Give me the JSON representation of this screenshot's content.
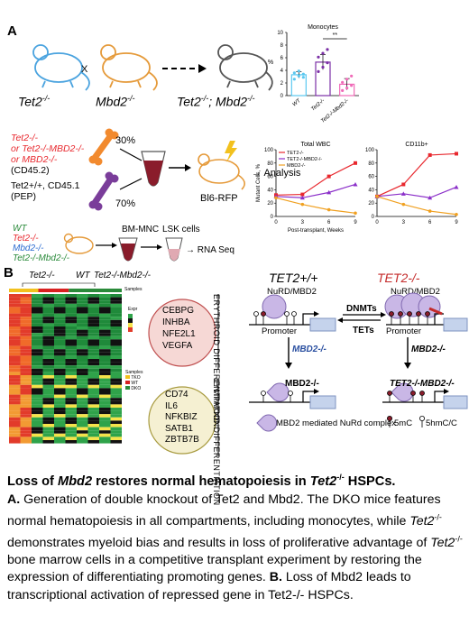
{
  "panel_a_label": "A",
  "panel_b_label": "B",
  "mice": {
    "tet2": "Tet2",
    "tet2_sup": "-/-",
    "cross": "X",
    "mbd2": "Mbd2",
    "mbd2_sup": "-/-",
    "dko_a": "Tet2",
    "dko_sup1": "-/-",
    "dko_b": "; Mbd2",
    "dko_sup2": "-/-"
  },
  "transplant": {
    "donor_lines": [
      "Tet2-/-",
      "or Tet2-/-MBD2-/-",
      "or MBD2-/-",
      "(CD45.2)"
    ],
    "competitor_lines": [
      "Tet2+/+, CD45.1",
      "(PEP)"
    ],
    "pct_top": "30%",
    "pct_bottom": "70%",
    "recipient": "Bl6-RFP",
    "analysis": "Analysis"
  },
  "rnaseq": {
    "genotypes": [
      "WT",
      "Tet2-/-",
      "Mbd2-/-",
      "Tet2-/-Mbd2-/-"
    ],
    "bm_mnc": "BM-MNC",
    "lsk": "LSK cells",
    "rna": "RNA Seq"
  },
  "chart_data": [
    {
      "type": "bar",
      "title": "Monocytes",
      "ylabel": "%",
      "categories": [
        "WT",
        "Tet2-/-",
        "Tet2-/-Mbd2-/-"
      ],
      "values": [
        3.3,
        5.3,
        1.8
      ],
      "errors": [
        0.5,
        1.2,
        0.9
      ],
      "points": [
        [
          2.6,
          3.1,
          3.4,
          3.6,
          3.9,
          2.9
        ],
        [
          3.8,
          4.5,
          5.2,
          6.1,
          6.7,
          7.3
        ],
        [
          0.8,
          1.2,
          1.6,
          2.1,
          2.6,
          3.1
        ]
      ],
      "ylim": [
        0,
        10
      ],
      "yticks": [
        "0",
        "2",
        "4",
        "6",
        "8",
        "10"
      ],
      "colors": [
        "#5bc8f0",
        "#7b2fa6",
        "#f06bb8"
      ],
      "significance": "**"
    },
    {
      "type": "line",
      "title": "Total WBC",
      "ylabel": "Mutant Cells, %",
      "xlabel": "Post-transplant, Weeks",
      "x": [
        0,
        3,
        6,
        9
      ],
      "xticks": [
        "0",
        "3",
        "6",
        "9"
      ],
      "ylim": [
        0,
        100
      ],
      "yticks": [
        "0",
        "20",
        "40",
        "60",
        "80",
        "100"
      ],
      "series": [
        {
          "name": "TET2-/-",
          "color": "#e8282e",
          "values": [
            32,
            33,
            60,
            80
          ]
        },
        {
          "name": "TET2-/-MBD2-/-",
          "color": "#8b2fc9",
          "values": [
            30,
            28,
            36,
            48
          ]
        },
        {
          "name": "MBD2-/-",
          "color": "#f0a020",
          "values": [
            28,
            18,
            10,
            5
          ]
        }
      ]
    },
    {
      "type": "line",
      "title": "CD11b+",
      "x": [
        0,
        3,
        6,
        9
      ],
      "xticks": [
        "0",
        "3",
        "6",
        "9"
      ],
      "ylim": [
        0,
        100
      ],
      "yticks": [
        "0",
        "20",
        "40",
        "60",
        "80",
        "100"
      ],
      "series": [
        {
          "name": "TET2-/-",
          "color": "#e8282e",
          "values": [
            30,
            48,
            92,
            94
          ]
        },
        {
          "name": "TET2-/-MBD2-/-",
          "color": "#8b2fc9",
          "values": [
            30,
            34,
            28,
            44
          ]
        },
        {
          "name": "MBD2-/-",
          "color": "#f0a020",
          "values": [
            30,
            18,
            8,
            3
          ]
        }
      ]
    }
  ],
  "heatmap": {
    "col_labels": [
      "Tet2-/-",
      "WT",
      "Tet2-/-Mbd2-/-"
    ],
    "samples": "Samples",
    "legend_expr": "Expr",
    "sample_key": [
      "TKO",
      "WT",
      "DKO"
    ],
    "genes_top": [
      "CEBPG",
      "INHBA",
      "NFE2L1",
      "VEGFA"
    ],
    "genes_bottom": [
      "CD74",
      "IL6",
      "NFKBIZ",
      "SATB1",
      "ZBTB7B"
    ],
    "erythroid": "ERYTHROID DIFFERENTIATION",
    "lymphoid": "LYMPHOID DIFFERENTIATION"
  },
  "mechanism": {
    "tet2_wt": "TET2+/+",
    "tet2_ko": "TET2-/-",
    "nurd_left": "NuRD/MBD2",
    "nurd_right": "NuRD/MBD2",
    "dnmts": "DNMTs",
    "tets": "TETs",
    "promoter_left": "Promoter",
    "promoter_right": "Promoter",
    "mbd2_arrow_left": "MBD2-/-",
    "mbd2_arrow_right": "MBD2-/-",
    "mbd2_result": "MBD2-/-",
    "dko_result": "TET2-/-MBD2-/-",
    "legend_complex": "MBD2 mediated NuRd complex",
    "legend_5mc": "5mC",
    "legend_5hmc": "5hmC/C"
  },
  "caption": {
    "title_pre": "Loss of ",
    "title_gene": "Mbd2",
    "title_post": " restores normal hematopoiesis in ",
    "title_gene2": "Tet2",
    "title_sup": "-/-",
    "title_end": " HSPCs.",
    "a_label": "A.",
    "a_text1": " Generation of double knockout of Tet2 and Mbd2. The DKO mice features normal hematopoiesis in all compartments, including monocytes, while ",
    "a_gene1": "Tet2",
    "a_sup1": "-/-",
    "a_text2": " demonstrates myeloid bias and results in loss of proliferative advantage of ",
    "a_gene2": "Tet2",
    "a_sup2": "-/-",
    "a_text3": " bone marrow cells in a competitive transplant experiment by restoring the expression of differentiating promoting genes. ",
    "b_label": "B.",
    "b_text": " Loss of Mbd2 leads to transcriptional activation of repressed gene in Tet2-/- HSPCs."
  }
}
